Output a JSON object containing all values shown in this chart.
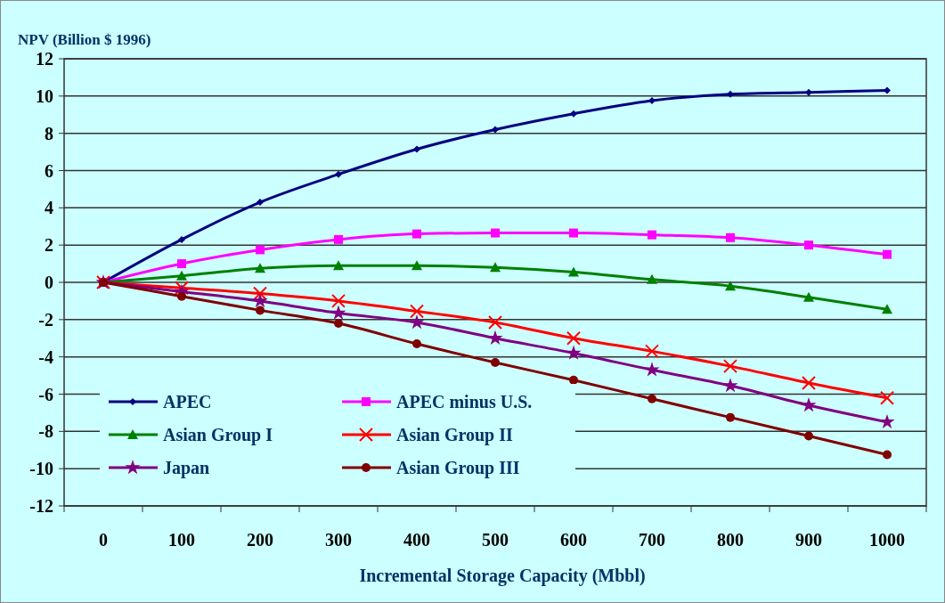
{
  "chart_data": {
    "type": "line",
    "ylabel": "NPV (Billion $ 1996)",
    "xlabel": "Incremental Storage Capacity (Mbbl)",
    "categories": [
      "0",
      "100",
      "200",
      "300",
      "400",
      "500",
      "600",
      "700",
      "800",
      "900",
      "1000"
    ],
    "ylim": [
      -12,
      12
    ],
    "yticks": [
      -12,
      -10,
      -8,
      -6,
      -4,
      -2,
      0,
      2,
      4,
      6,
      8,
      10,
      12
    ],
    "grid": "y",
    "legend": "bottom left",
    "series": [
      {
        "name": "APEC",
        "color": "#000080",
        "marker": "diamond",
        "values": [
          0,
          2.3,
          4.3,
          5.8,
          7.15,
          8.2,
          9.05,
          9.75,
          10.1,
          10.2,
          10.3
        ]
      },
      {
        "name": "APEC minus U.S.",
        "color": "#ff00ff",
        "marker": "square",
        "values": [
          0,
          1.0,
          1.75,
          2.3,
          2.6,
          2.65,
          2.65,
          2.55,
          2.4,
          2.0,
          1.5
        ]
      },
      {
        "name": "Asian Group I",
        "color": "#008000",
        "marker": "triangle",
        "values": [
          0,
          0.35,
          0.75,
          0.9,
          0.9,
          0.8,
          0.55,
          0.15,
          -0.2,
          -0.8,
          -1.45
        ]
      },
      {
        "name": "Asian Group II",
        "color": "#ff0000",
        "marker": "cross",
        "values": [
          0,
          -0.3,
          -0.6,
          -1.0,
          -1.55,
          -2.15,
          -3.0,
          -3.7,
          -4.5,
          -5.4,
          -6.2
        ]
      },
      {
        "name": "Japan",
        "color": "#800080",
        "marker": "star",
        "values": [
          0,
          -0.5,
          -1.0,
          -1.65,
          -2.15,
          -3.0,
          -3.8,
          -4.7,
          -5.55,
          -6.6,
          -7.5
        ]
      },
      {
        "name": "Asian Group III",
        "color": "#800000",
        "marker": "circle",
        "values": [
          0,
          -0.75,
          -1.5,
          -2.2,
          -3.3,
          -4.3,
          -5.25,
          -6.25,
          -7.25,
          -8.25,
          -9.25
        ]
      }
    ]
  }
}
